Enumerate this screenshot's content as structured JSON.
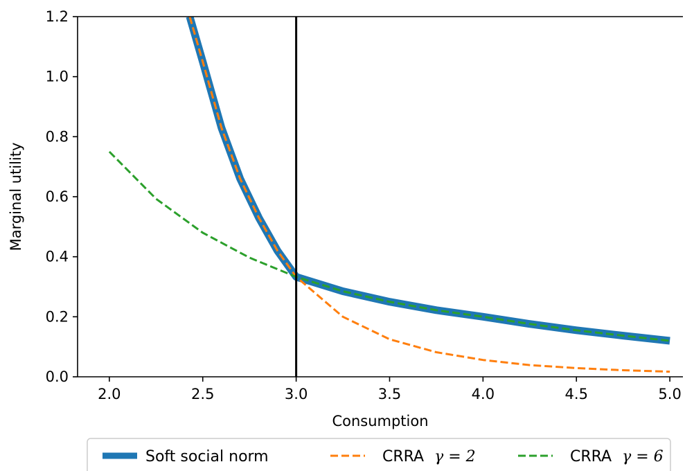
{
  "chart_data": {
    "type": "line",
    "title": "",
    "xlabel": "Consumption",
    "ylabel": "Marginal utility",
    "xlim": [
      1.83,
      5.07
    ],
    "ylim": [
      0.0,
      1.2
    ],
    "xticks": [
      2.0,
      2.5,
      3.0,
      3.5,
      4.0,
      4.5,
      5.0
    ],
    "xtick_labels": [
      "2.0",
      "2.5",
      "3.0",
      "3.5",
      "4.0",
      "4.5",
      "5.0"
    ],
    "yticks": [
      0.0,
      0.2,
      0.4,
      0.6,
      0.8,
      1.0,
      1.2
    ],
    "ytick_labels": [
      "0.0",
      "0.2",
      "0.4",
      "0.6",
      "0.8",
      "1.0",
      "1.2"
    ],
    "vline": {
      "x": 3.0,
      "color": "#000000"
    },
    "grid": false,
    "legend_position": "below",
    "series": [
      {
        "name": "Soft social norm",
        "style": "solid-thick",
        "color": "#1f77b4",
        "x": [
          2.43,
          2.5,
          2.6,
          2.7,
          2.8,
          2.9,
          3.0,
          3.25,
          3.5,
          3.75,
          4.0,
          4.25,
          4.5,
          4.75,
          5.0
        ],
        "y": [
          1.2,
          1.05,
          0.83,
          0.66,
          0.53,
          0.42,
          0.333,
          0.285,
          0.25,
          0.222,
          0.2,
          0.176,
          0.155,
          0.137,
          0.12
        ]
      },
      {
        "name": "CRRA",
        "gamma_label": "γ = 2",
        "style": "dashed",
        "color": "#ff7f0e",
        "x": [
          2.43,
          2.5,
          2.6,
          2.7,
          2.8,
          2.9,
          3.0,
          3.25,
          3.5,
          3.75,
          4.0,
          4.25,
          4.5,
          4.75,
          5.0
        ],
        "y": [
          1.2,
          1.05,
          0.83,
          0.66,
          0.53,
          0.42,
          0.333,
          0.2,
          0.125,
          0.082,
          0.056,
          0.039,
          0.029,
          0.022,
          0.017
        ]
      },
      {
        "name": "CRRA",
        "gamma_label": "γ = 6",
        "style": "dashed",
        "color": "#2ca02c",
        "x": [
          2.0,
          2.25,
          2.5,
          2.75,
          3.0,
          3.25,
          3.5,
          3.75,
          4.0,
          4.25,
          4.5,
          4.75,
          5.0
        ],
        "y": [
          0.75,
          0.593,
          0.48,
          0.397,
          0.333,
          0.285,
          0.25,
          0.222,
          0.2,
          0.176,
          0.155,
          0.137,
          0.12
        ]
      }
    ]
  }
}
